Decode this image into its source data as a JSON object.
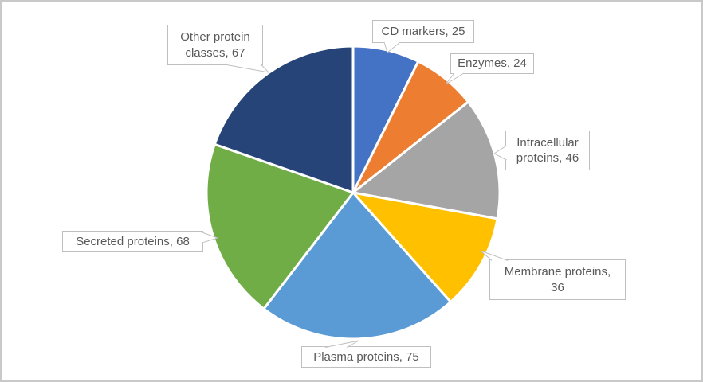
{
  "frame": {
    "background": "#FFFFFF",
    "border_color": "#C9C9C9"
  },
  "chart_data": {
    "type": "pie",
    "title": "",
    "categories": [
      "CD markers",
      "Enzymes",
      "Intracellular proteins",
      "Membrane proteins",
      "Plasma proteins",
      "Secreted proteins",
      "Other protein classes"
    ],
    "values": [
      25,
      24,
      46,
      36,
      75,
      68,
      67
    ],
    "total": 341,
    "start_angle_deg": 0,
    "direction": "clockwise",
    "legend_position": "none",
    "data_label_style": "category-and-value-callout-boxes",
    "slice_border_color": "#FFFFFF",
    "label_text_color": "#595959",
    "label_box_fill": "#FFFFFF",
    "label_box_border_color": "#BFBFBF",
    "slices": [
      {
        "name": "CD markers",
        "value": 25,
        "color": "#4472C4",
        "label": "CD markers, 25"
      },
      {
        "name": "Enzymes",
        "value": 24,
        "color": "#ED7D31",
        "label": "Enzymes, 24"
      },
      {
        "name": "Intracellular proteins",
        "value": 46,
        "color": "#A5A5A5",
        "label": "Intracellular\nproteins, 46"
      },
      {
        "name": "Membrane proteins",
        "value": 36,
        "color": "#FFC000",
        "label": "Membrane proteins,\n36"
      },
      {
        "name": "Plasma proteins",
        "value": 75,
        "color": "#5B9BD5",
        "label": "Plasma proteins, 75"
      },
      {
        "name": "Secreted proteins",
        "value": 68,
        "color": "#70AD47",
        "label": "Secreted proteins, 68"
      },
      {
        "name": "Other protein classes",
        "value": 67,
        "color": "#264478",
        "label": "Other protein\nclasses, 67"
      }
    ]
  }
}
